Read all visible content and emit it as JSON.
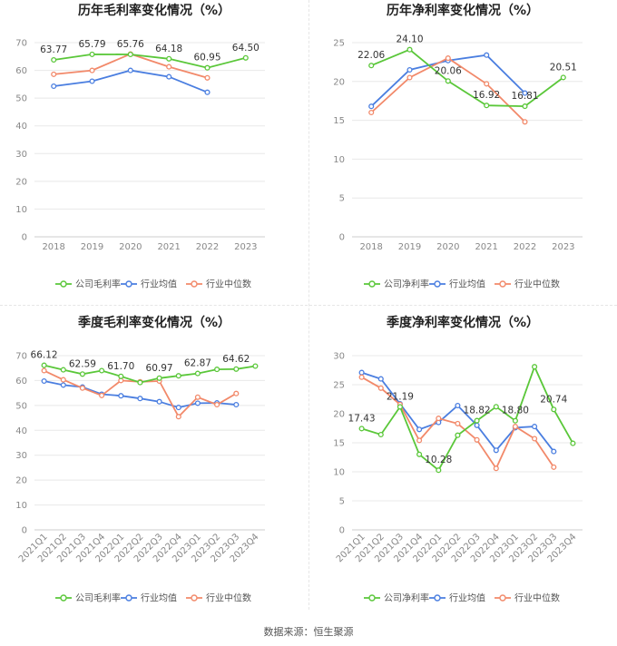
{
  "source_text": "数据来源：恒生聚源",
  "legend_labels": {
    "series_a_annual_gross": "公司毛利率",
    "series_a_net": "公司净利率",
    "avg": "行业均值",
    "median": "行业中位数"
  },
  "colors": {
    "company": "#5ac739",
    "average": "#4a7ee0",
    "median": "#f2896a",
    "grid": "#e8e8e8",
    "axis_text": "#888888",
    "label_text": "#333333",
    "title_text": "#222222"
  },
  "chart_data": [
    {
      "type": "line",
      "title": "历年毛利率变化情况（%）",
      "categories": [
        "2018",
        "2019",
        "2020",
        "2021",
        "2022",
        "2023"
      ],
      "ylim": [
        0,
        70
      ],
      "yticks": [
        0,
        10,
        20,
        30,
        40,
        50,
        60,
        70
      ],
      "legend": "bottom",
      "series": [
        {
          "name": "公司毛利率",
          "role": "company",
          "values": [
            63.77,
            65.79,
            65.76,
            64.18,
            60.95,
            64.5
          ],
          "labels": [
            "63.77",
            "65.79",
            "65.76",
            "64.18",
            "60.95",
            "64.50"
          ]
        },
        {
          "name": "行业均值",
          "role": "average",
          "values": [
            54.3,
            56.1,
            60.0,
            57.7,
            52.1,
            null
          ]
        },
        {
          "name": "行业中位数",
          "role": "median",
          "values": [
            58.6,
            60.0,
            65.9,
            61.3,
            57.3,
            null
          ]
        }
      ]
    },
    {
      "type": "line",
      "title": "历年净利率变化情况（%）",
      "categories": [
        "2018",
        "2019",
        "2020",
        "2021",
        "2022",
        "2023"
      ],
      "ylim": [
        0,
        25
      ],
      "yticks": [
        0,
        5,
        10,
        15,
        20,
        25
      ],
      "legend": "bottom",
      "series": [
        {
          "name": "公司净利率",
          "role": "company",
          "values": [
            22.06,
            24.1,
            20.06,
            16.92,
            16.81,
            20.51
          ],
          "labels": [
            "22.06",
            "24.10",
            "20.06",
            "16.92",
            "16.81",
            "20.51"
          ]
        },
        {
          "name": "行业均值",
          "role": "average",
          "values": [
            16.8,
            21.5,
            22.7,
            23.4,
            18.5,
            null
          ]
        },
        {
          "name": "行业中位数",
          "role": "median",
          "values": [
            16.0,
            20.5,
            23.0,
            19.7,
            14.8,
            null
          ]
        }
      ]
    },
    {
      "type": "line",
      "title": "季度毛利率变化情况（%）",
      "categories": [
        "2021Q1",
        "2021Q2",
        "2021Q3",
        "2021Q4",
        "2022Q1",
        "2022Q2",
        "2022Q3",
        "2022Q4",
        "2023Q1",
        "2023Q2",
        "2023Q3",
        "2023Q4"
      ],
      "ylim": [
        0,
        70
      ],
      "yticks": [
        0,
        10,
        20,
        30,
        40,
        50,
        60,
        70
      ],
      "legend": "bottom",
      "series": [
        {
          "name": "公司毛利率",
          "role": "company",
          "values": [
            66.12,
            64.3,
            62.59,
            64.0,
            61.7,
            59.2,
            60.97,
            61.9,
            62.87,
            64.5,
            64.62,
            65.8
          ],
          "labels": [
            "66.12",
            "",
            "62.59",
            "",
            "61.70",
            "",
            "60.97",
            "",
            "62.87",
            "",
            "64.62",
            ""
          ]
        },
        {
          "name": "行业均值",
          "role": "average",
          "values": [
            59.8,
            58.2,
            57.4,
            54.5,
            53.9,
            52.8,
            51.5,
            49.2,
            50.9,
            51.0,
            50.3,
            null
          ]
        },
        {
          "name": "行业中位数",
          "role": "median",
          "values": [
            64.0,
            60.3,
            57.0,
            54.0,
            60.0,
            59.5,
            59.8,
            45.5,
            53.3,
            50.3,
            54.8,
            null
          ]
        }
      ]
    },
    {
      "type": "line",
      "title": "季度净利率变化情况（%）",
      "categories": [
        "2021Q1",
        "2021Q2",
        "2021Q3",
        "2021Q4",
        "2022Q1",
        "2022Q2",
        "2022Q3",
        "2022Q4",
        "2023Q1",
        "2023Q2",
        "2023Q3",
        "2023Q4"
      ],
      "ylim": [
        0,
        30
      ],
      "yticks": [
        0,
        5,
        10,
        15,
        20,
        25,
        30
      ],
      "legend": "bottom",
      "series": [
        {
          "name": "公司净利率",
          "role": "company",
          "values": [
            17.43,
            16.4,
            21.19,
            13.0,
            10.28,
            16.3,
            18.82,
            21.2,
            18.8,
            28.1,
            20.74,
            14.9
          ],
          "labels": [
            "17.43",
            "",
            "21.19",
            "",
            "10.28",
            "",
            "18.82",
            "",
            "18.80",
            "",
            "20.74",
            ""
          ]
        },
        {
          "name": "行业均值",
          "role": "average",
          "values": [
            27.1,
            26.0,
            21.7,
            17.3,
            18.5,
            21.4,
            18.0,
            13.7,
            17.6,
            17.8,
            13.5,
            null
          ]
        },
        {
          "name": "行业中位数",
          "role": "median",
          "values": [
            26.3,
            24.4,
            21.6,
            15.4,
            19.2,
            18.3,
            15.5,
            10.6,
            17.8,
            15.7,
            10.8,
            null
          ]
        }
      ]
    }
  ]
}
